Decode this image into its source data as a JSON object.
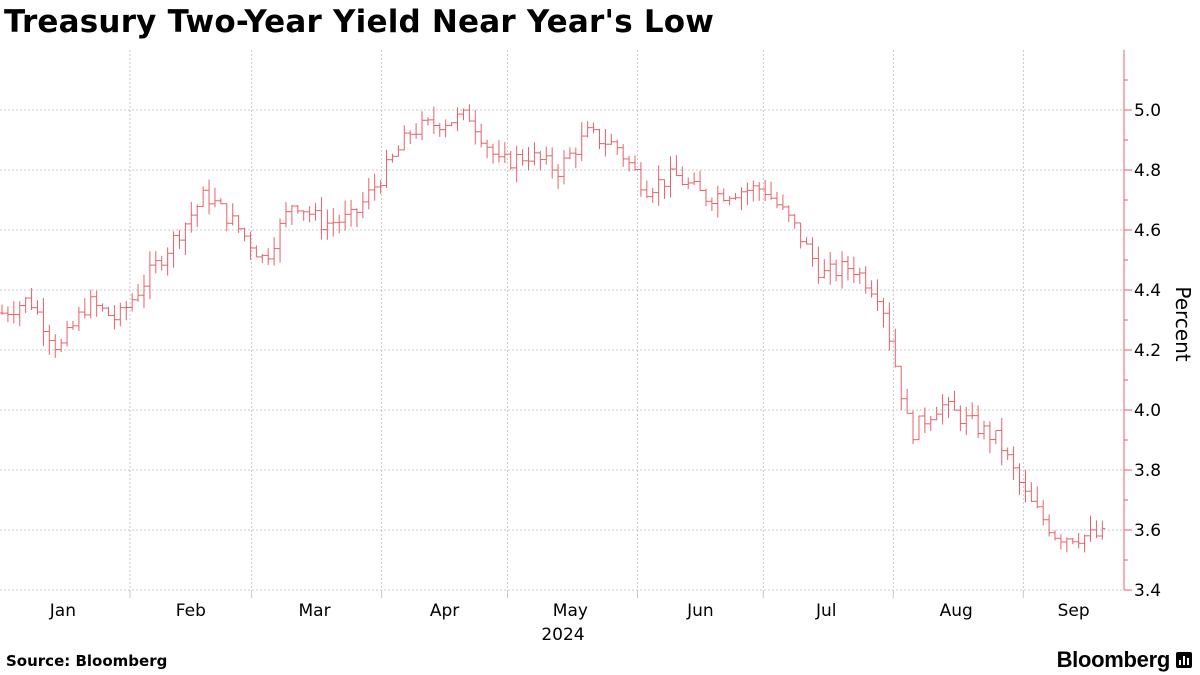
{
  "header": {
    "title": "Treasury Two-Year Yield Near Year's Low"
  },
  "footer": {
    "source": "Source: Bloomberg",
    "brand": "Bloomberg"
  },
  "icons": {
    "brand_mark": "bloomberg-chart-icon"
  },
  "colors": {
    "series": "#e8606a",
    "grid": "#c8c8c8",
    "axis": "#e8606a"
  },
  "chart_data": {
    "type": "line",
    "style": "ohlc-range-bars",
    "title": "Treasury Two-Year Yield Near Year's Low",
    "xlabel": "2024",
    "ylabel": "Percent",
    "ylim": [
      3.4,
      5.2
    ],
    "yticks": [
      "3.4",
      "3.6",
      "3.8",
      "4.0",
      "4.2",
      "4.4",
      "4.6",
      "4.8",
      "5.0"
    ],
    "xticks": [
      "Jan",
      "Feb",
      "Mar",
      "Apr",
      "May",
      "Jun",
      "Jul",
      "Aug",
      "Sep"
    ],
    "grid": true,
    "axis_side": "right",
    "series": [
      {
        "x": [
          "2024-01-01",
          "2024-01-08",
          "2024-01-15",
          "2024-01-22",
          "2024-01-29",
          "2024-02-05",
          "2024-02-12",
          "2024-02-19",
          "2024-02-26",
          "2024-03-04",
          "2024-03-11",
          "2024-03-18",
          "2024-03-25",
          "2024-04-01",
          "2024-04-08",
          "2024-04-15",
          "2024-04-22",
          "2024-04-29",
          "2024-05-06",
          "2024-05-13",
          "2024-05-20",
          "2024-05-27",
          "2024-06-03",
          "2024-06-10",
          "2024-06-17",
          "2024-06-24",
          "2024-07-01",
          "2024-07-08",
          "2024-07-15",
          "2024-07-22",
          "2024-07-29",
          "2024-08-05",
          "2024-08-12",
          "2024-08-19",
          "2024-08-26",
          "2024-09-02",
          "2024-09-09",
          "2024-09-16"
        ],
        "y": [
          4.32,
          4.37,
          4.2,
          4.36,
          4.3,
          4.44,
          4.58,
          4.72,
          4.62,
          4.5,
          4.7,
          4.62,
          4.64,
          4.78,
          4.93,
          4.96,
          4.98,
          4.82,
          4.85,
          4.8,
          4.92,
          4.88,
          4.74,
          4.78,
          4.71,
          4.73,
          4.74,
          4.62,
          4.45,
          4.48,
          4.38,
          3.92,
          4.02,
          3.96,
          3.9,
          3.7,
          3.58,
          3.58
        ]
      }
    ]
  }
}
